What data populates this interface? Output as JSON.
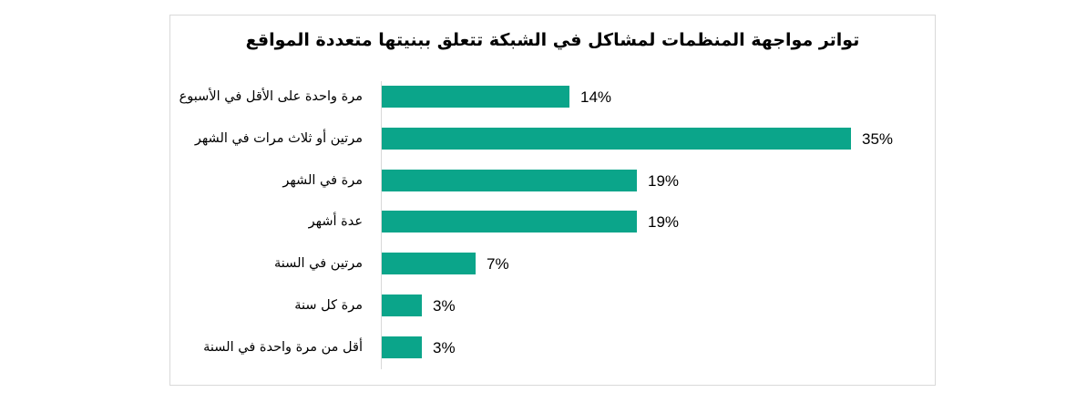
{
  "chart_data": {
    "type": "bar",
    "orientation": "horizontal",
    "title": "تواتر مواجهة المنظمات لمشاكل في الشبكة تتعلق ببنيتها متعددة المواقع",
    "categories": [
      "مرة واحدة على الأقل في الأسبوع",
      "مرتين أو ثلاث مرات في الشهر",
      "مرة في الشهر",
      "عدة أشهر",
      "مرتين في السنة",
      "مرة كل سنة",
      "أقل من مرة واحدة في السنة"
    ],
    "values": [
      14,
      35,
      19,
      19,
      7,
      3,
      3
    ],
    "value_labels": [
      "14%",
      "35%",
      "19%",
      "19%",
      "7%",
      "3%",
      "3%"
    ],
    "unit": "%",
    "xlabel": "",
    "ylabel": "",
    "xlim": [
      0,
      35
    ],
    "grid": false,
    "legend": null,
    "bar_color": "#0ba58a"
  },
  "colors": {
    "bar": "#0ba58a",
    "frame_border": "#d9d9d9",
    "axis": "#d9d9d9",
    "text": "#000000"
  },
  "bars": [
    {
      "label": "مرة واحدة على الأقل في الأسبوع",
      "value": 14,
      "value_label": "14%"
    },
    {
      "label": "مرتين أو ثلاث مرات في الشهر",
      "value": 35,
      "value_label": "35%"
    },
    {
      "label": "مرة في الشهر",
      "value": 19,
      "value_label": "19%"
    },
    {
      "label": "عدة أشهر",
      "value": 19,
      "value_label": "19%"
    },
    {
      "label": "مرتين في السنة",
      "value": 7,
      "value_label": "7%"
    },
    {
      "label": "مرة كل سنة",
      "value": 3,
      "value_label": "3%"
    },
    {
      "label": "أقل من مرة واحدة في السنة",
      "value": 3,
      "value_label": "3%"
    }
  ]
}
